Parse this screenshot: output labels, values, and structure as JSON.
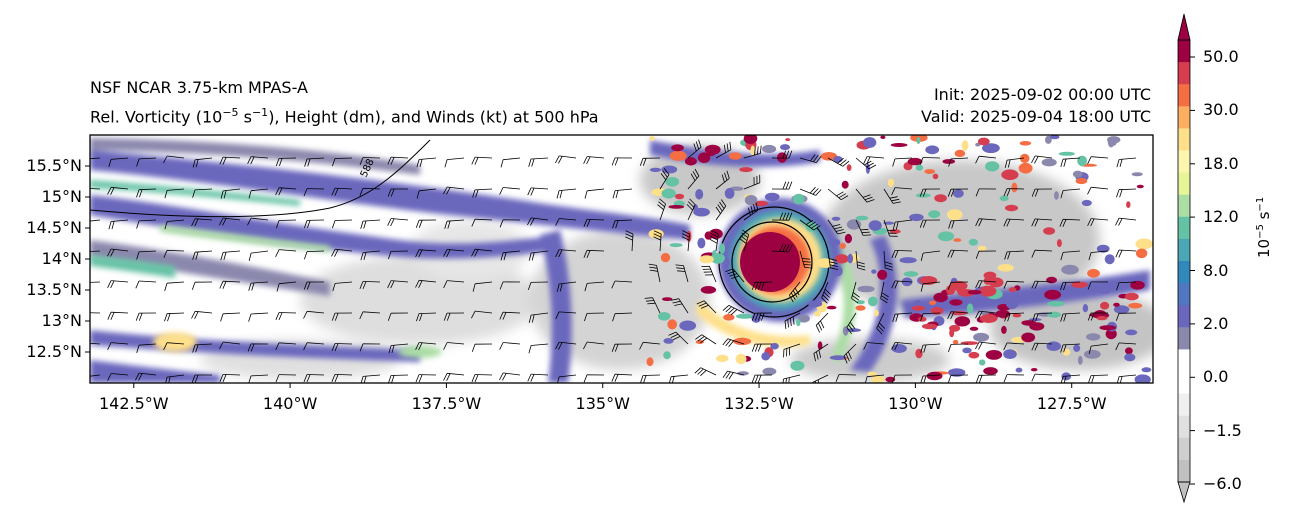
{
  "title": {
    "line1": "NSF NCAR 3.75-km MPAS-A",
    "line2_pre": "Rel. Vorticity (10",
    "line2_exp1": "−5",
    "line2_mid": " s",
    "line2_exp2": "−1",
    "line2_post": "), Height (dm), and Winds (kt) at 500 hPa",
    "init": "Init: 2025-09-02 00:00 UTC",
    "valid": "Valid: 2025-09-04 18:00 UTC"
  },
  "map": {
    "lon_range": [
      -143.2,
      -126.2
    ],
    "lat_range": [
      12.0,
      16.0
    ],
    "lon_ticks": [
      {
        "value": -142.5,
        "label": "142.5°W"
      },
      {
        "value": -140.0,
        "label": "140°W"
      },
      {
        "value": -137.5,
        "label": "137.5°W"
      },
      {
        "value": -135.0,
        "label": "135°W"
      },
      {
        "value": -132.5,
        "label": "132.5°W"
      },
      {
        "value": -130.0,
        "label": "130°W"
      },
      {
        "value": -127.5,
        "label": "127.5°W"
      }
    ],
    "lat_ticks": [
      {
        "value": 15.5,
        "label": "15.5°N"
      },
      {
        "value": 15.0,
        "label": "15°N"
      },
      {
        "value": 14.5,
        "label": "14.5°N"
      },
      {
        "value": 14.0,
        "label": "14°N"
      },
      {
        "value": 13.5,
        "label": "13.5°N"
      },
      {
        "value": 13.0,
        "label": "13°N"
      },
      {
        "value": 12.5,
        "label": "12.5°N"
      }
    ],
    "contour_label": "588",
    "cyclone_center": {
      "lon": -132.3,
      "lat": 14.0
    },
    "colors": {
      "neg_strong": "#bdbdbd",
      "neg_weak": "#e3e3e3",
      "weak_pos": "#8e8ab0",
      "pos_purple": "#6a67bd",
      "pos_blue": "#4a8fc0",
      "pos_teal": "#5cb6a6",
      "pos_green": "#a6d99f",
      "pos_yellow": "#fbf3a6",
      "pos_orange": "#f39055",
      "pos_red": "#d53e4f",
      "pos_max": "#9e0142"
    }
  },
  "colorbar": {
    "label_pre": "10",
    "label_exp1": "−5",
    "label_mid": " s",
    "label_exp2": "−1",
    "tick_labels": [
      "50.0",
      "30.0",
      "18.0",
      "12.0",
      "8.0",
      "2.0",
      "0.0",
      "−1.5",
      "−6.0"
    ],
    "bands": [
      "#9e0142",
      "#d53e4f",
      "#f46d43",
      "#fdae61",
      "#fee08b",
      "#fbf5b0",
      "#e6f598",
      "#abdda4",
      "#66c2a5",
      "#4ba6b5",
      "#3288bd",
      "#4f78c0",
      "#6a67bd",
      "#8b88ad",
      "#ffffff",
      "#ffffff",
      "#f0f0f0",
      "#e0e0e0",
      "#cfcfcf",
      "#c0c0c0"
    ]
  }
}
